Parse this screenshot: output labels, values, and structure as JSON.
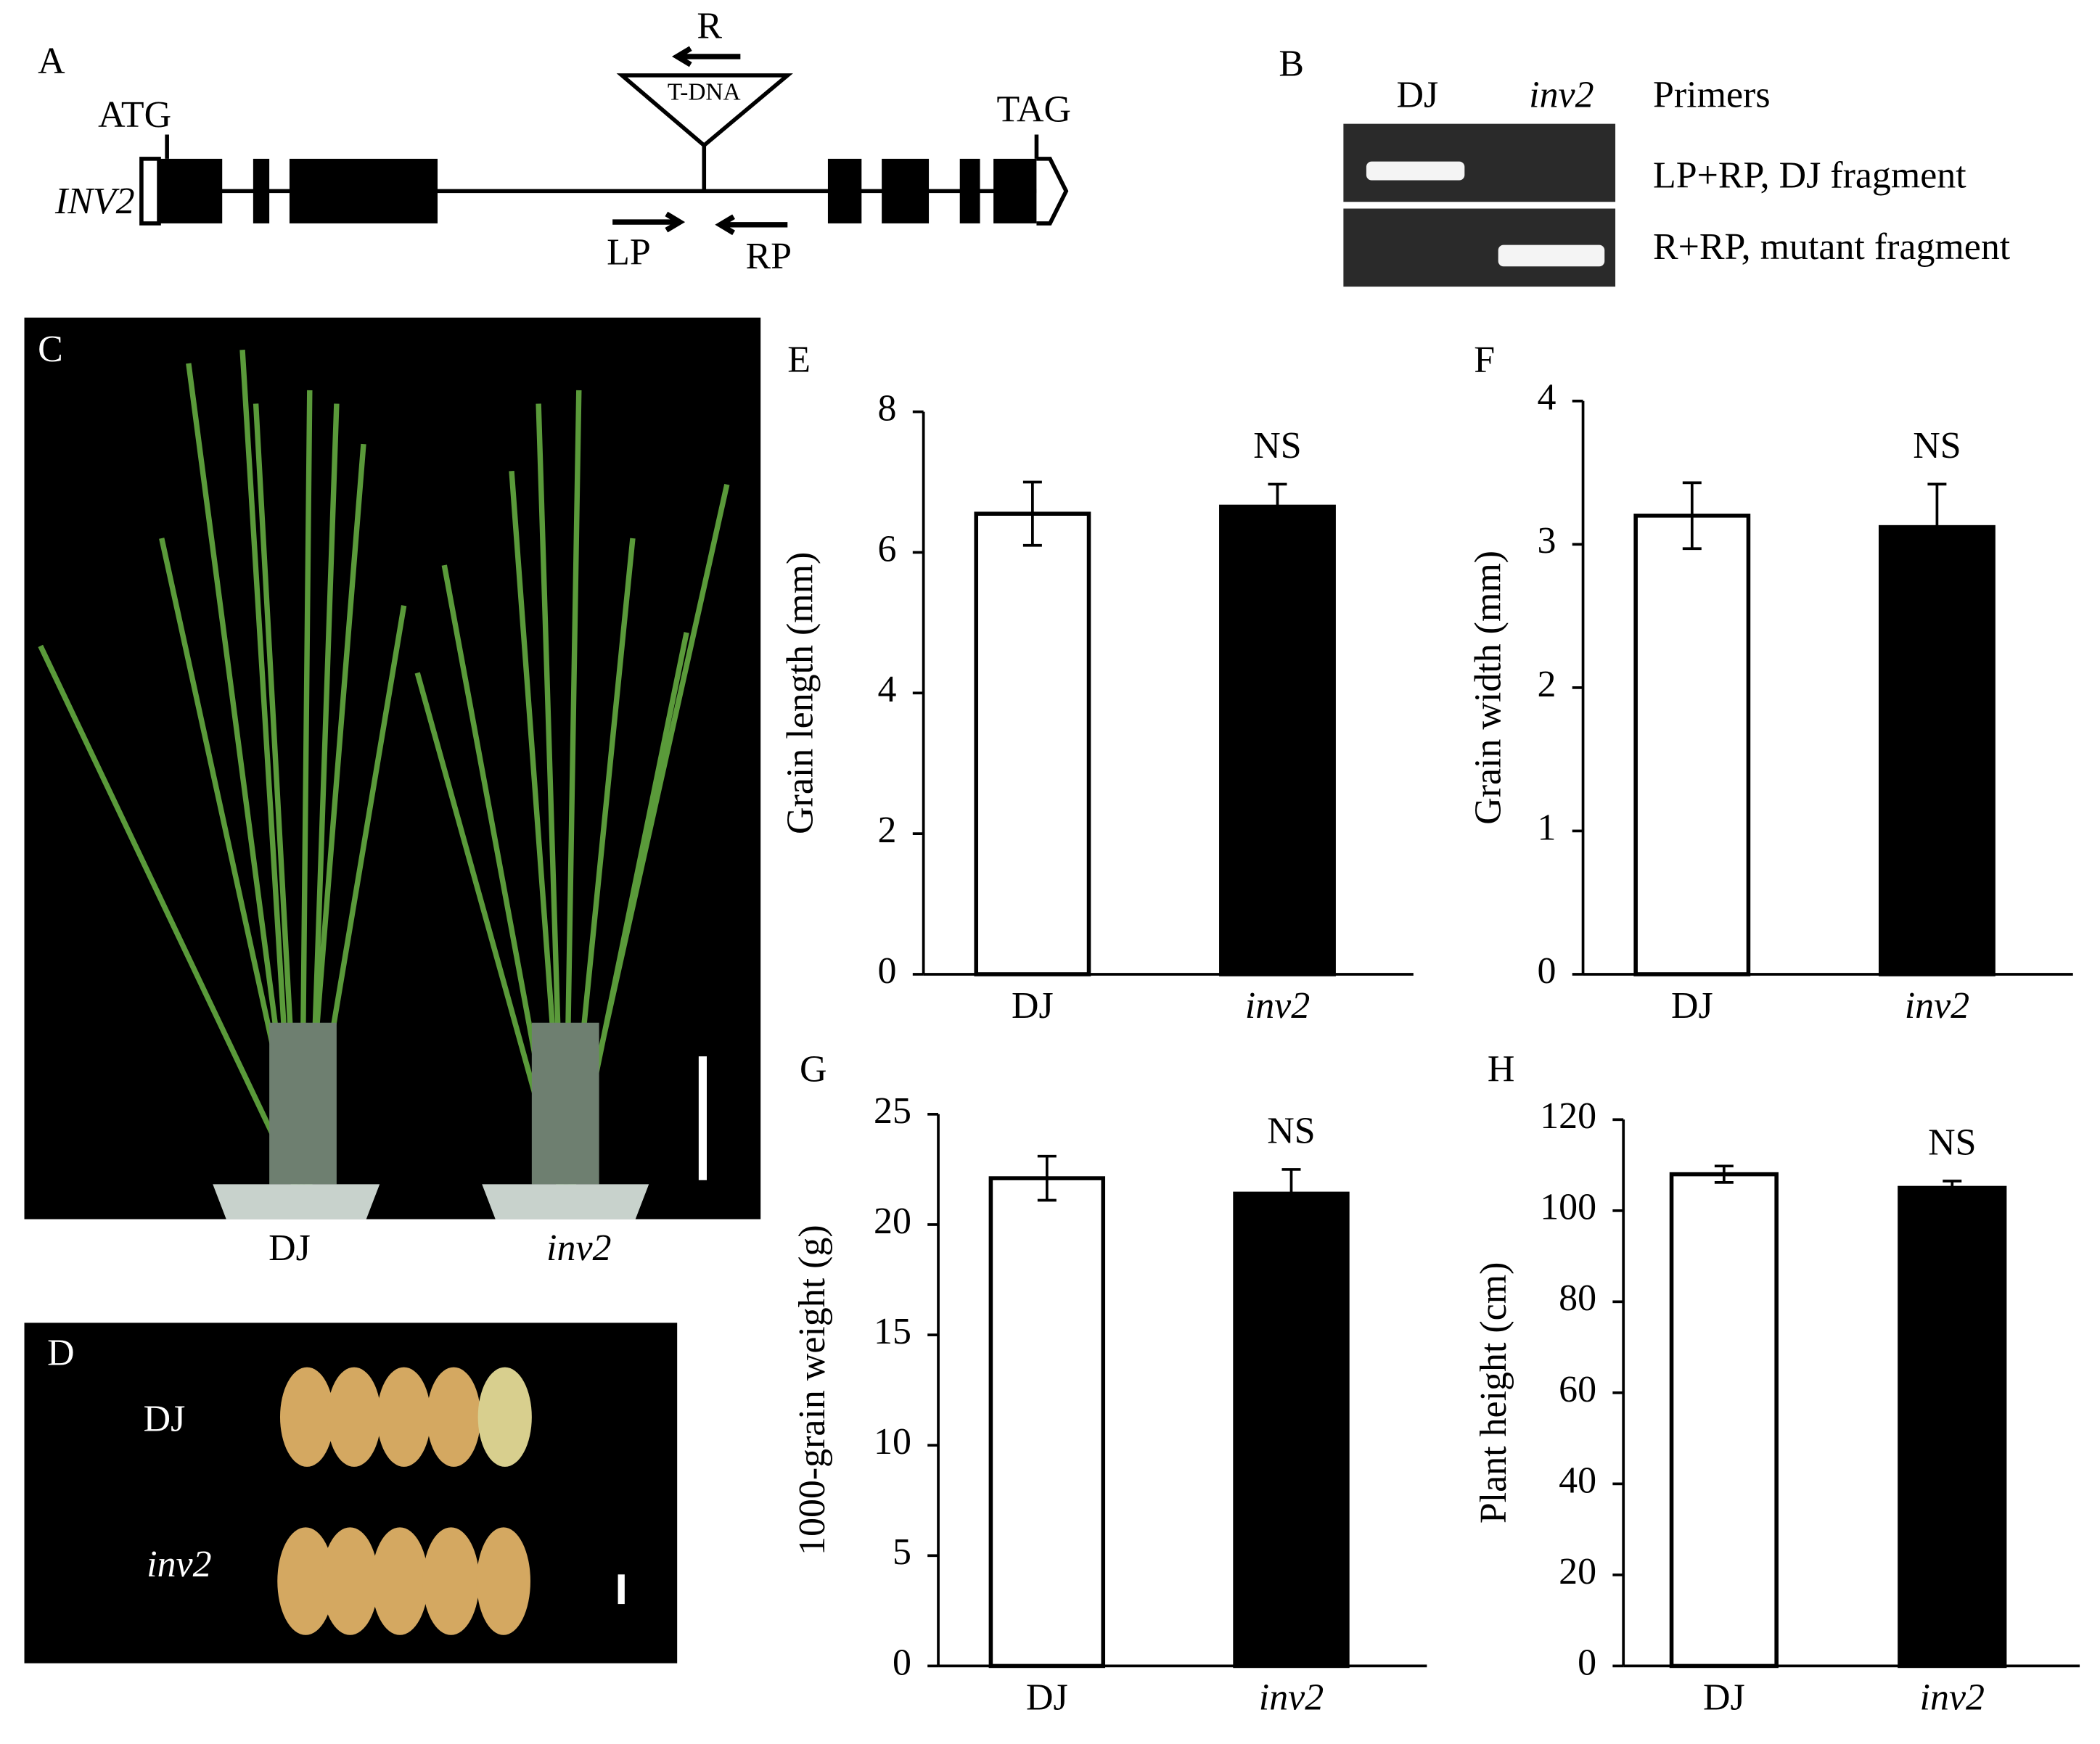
{
  "panels": {
    "A": {
      "label": "A",
      "gene": "INV2",
      "start": "ATG",
      "stop": "TAG",
      "insert": "T-DNA",
      "primers": [
        "R",
        "LP",
        "RP"
      ]
    },
    "B": {
      "label": "B",
      "lanes": [
        "DJ",
        "inv2"
      ],
      "header": "Primers",
      "rows": [
        "LP+RP, DJ fragment",
        "R+RP, mutant fragment"
      ]
    },
    "C": {
      "label": "C",
      "genotypes": [
        "DJ",
        "inv2"
      ]
    },
    "D": {
      "label": "D",
      "genotypes": [
        "DJ",
        "inv2"
      ]
    }
  },
  "chart_data": [
    {
      "type": "bar",
      "panel_label": "E",
      "ylabel": "Grain length (mm)",
      "categories": [
        "DJ",
        "inv2"
      ],
      "values": [
        6.55,
        6.65
      ],
      "errors": [
        0.45,
        0.32
      ],
      "annotation": "NS",
      "colors": [
        "#ffffff",
        "#000000"
      ],
      "ylim": [
        0,
        8
      ],
      "yticks": [
        0,
        2,
        4,
        6,
        8
      ]
    },
    {
      "type": "bar",
      "panel_label": "F",
      "ylabel": "Grain width (mm)",
      "categories": [
        "DJ",
        "inv2"
      ],
      "values": [
        3.2,
        3.12
      ],
      "errors": [
        0.23,
        0.3
      ],
      "annotation": "NS",
      "colors": [
        "#ffffff",
        "#000000"
      ],
      "ylim": [
        0,
        4
      ],
      "yticks": [
        0,
        1,
        2,
        3,
        4
      ]
    },
    {
      "type": "bar",
      "panel_label": "G",
      "ylabel": "1000-grain weight (g)",
      "categories": [
        "DJ",
        "inv2"
      ],
      "values": [
        22.1,
        21.4
      ],
      "errors": [
        1.0,
        1.1
      ],
      "annotation": "NS",
      "colors": [
        "#ffffff",
        "#000000"
      ],
      "ylim": [
        0,
        25
      ],
      "yticks": [
        0,
        5,
        10,
        15,
        20,
        25
      ]
    },
    {
      "type": "bar",
      "panel_label": "H",
      "ylabel": "Plant height (cm)",
      "categories": [
        "DJ",
        "inv2"
      ],
      "values": [
        108,
        105
      ],
      "errors": [
        1.8,
        1.5
      ],
      "annotation": "NS",
      "colors": [
        "#ffffff",
        "#000000"
      ],
      "ylim": [
        0,
        120
      ],
      "yticks": [
        0,
        20,
        40,
        60,
        80,
        100,
        120
      ]
    }
  ]
}
